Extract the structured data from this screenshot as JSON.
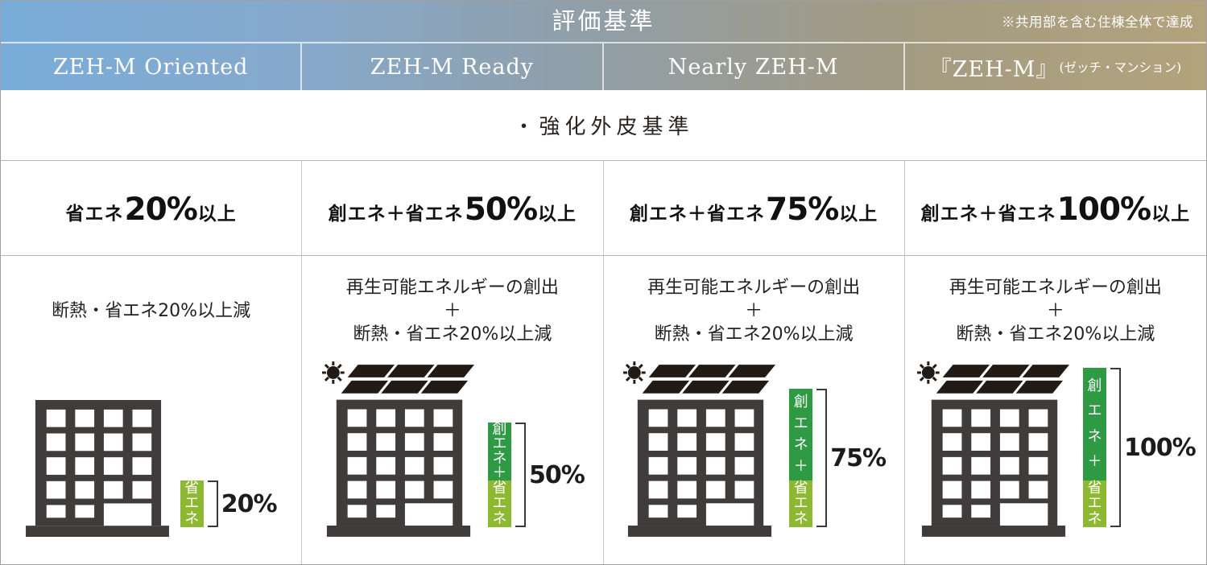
{
  "header": {
    "title": "評価基準",
    "note": "※共用部を含む住棟全体で達成"
  },
  "envelope_row": "・強化外皮基準",
  "columns": [
    {
      "header": "ZEH-M Oriented",
      "header_suffix": "",
      "criteria_pre": "省エネ",
      "criteria_big": "20%",
      "criteria_post": "以上",
      "desc_line1": "断熱・省エネ20%以上減",
      "desc_line2": "",
      "desc_line3": "",
      "meter_dark_label": "",
      "meter_light_label": "省エネ",
      "meter_percent": "20%"
    },
    {
      "header": "ZEH-M Ready",
      "header_suffix": "",
      "criteria_pre": "創エネ＋省エネ",
      "criteria_big": "50%",
      "criteria_post": "以上",
      "desc_line1": "再生可能エネルギーの創出",
      "desc_line2": "＋",
      "desc_line3": "断熱・省エネ20%以上減",
      "meter_dark_label": "創エネ＋",
      "meter_light_label": "省エネ",
      "meter_percent": "50%"
    },
    {
      "header": "Nearly ZEH-M",
      "header_suffix": "",
      "criteria_pre": "創エネ＋省エネ",
      "criteria_big": "75%",
      "criteria_post": "以上",
      "desc_line1": "再生可能エネルギーの創出",
      "desc_line2": "＋",
      "desc_line3": "断熱・省エネ20%以上減",
      "meter_dark_label": "創エネ＋",
      "meter_light_label": "省エネ",
      "meter_percent": "75%"
    },
    {
      "header": "『ZEH-M』",
      "header_suffix": "(ゼッチ・マンション)",
      "criteria_pre": "創エネ＋省エネ",
      "criteria_big": "100%",
      "criteria_post": "以上",
      "desc_line1": "再生可能エネルギーの創出",
      "desc_line2": "＋",
      "desc_line3": "断熱・省エネ20%以上減",
      "meter_dark_label": "創エネ＋",
      "meter_light_label": "省エネ",
      "meter_percent": "100%"
    }
  ],
  "colors": {
    "gradient_left": "#79acd9",
    "gradient_right": "#b2a37c",
    "meter_dark_green": "#2e9b44",
    "meter_light_green": "#8cb832",
    "building": "#3f3c3b",
    "solar_panel": "#221a15"
  }
}
